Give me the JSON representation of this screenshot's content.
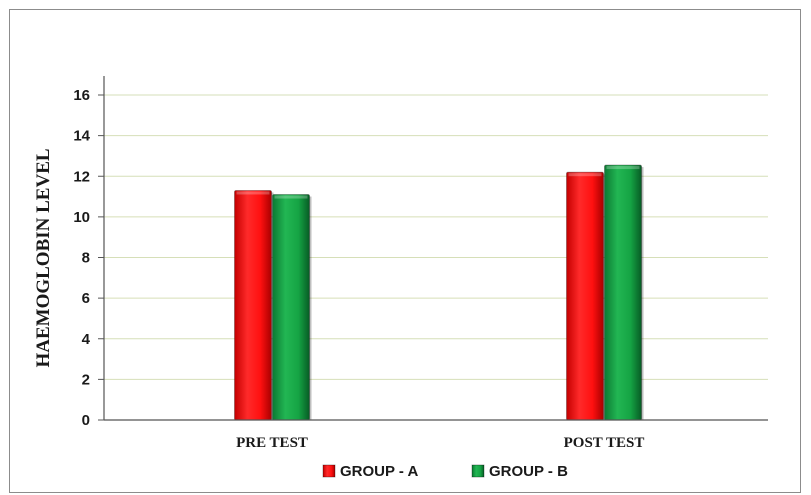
{
  "chart_data": {
    "type": "bar",
    "title": "",
    "xlabel": "",
    "ylabel": "HAEMOGLOBIN LEVEL",
    "categories": [
      "PRE TEST",
      "POST TEST"
    ],
    "series": [
      {
        "name": "GROUP - A",
        "values": [
          11.3,
          12.2
        ],
        "color": "#ff1a1a"
      },
      {
        "name": "GROUP - B",
        "values": [
          11.1,
          12.55
        ],
        "color": "#17a84a"
      }
    ],
    "ylim": [
      0,
      16
    ],
    "yticks": [
      "0",
      "2",
      "4",
      "6",
      "8",
      "10",
      "12",
      "14",
      "16"
    ],
    "grid": true,
    "grid_color": "#d6dfb8",
    "legend_position": "bottom-center"
  }
}
